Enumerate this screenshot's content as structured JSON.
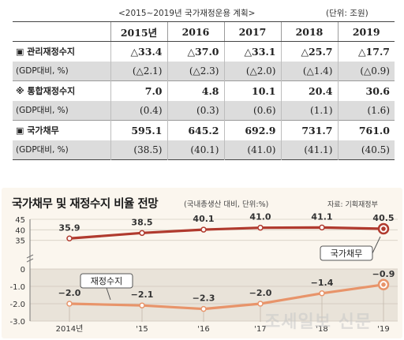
{
  "table": {
    "caption": "<2015~2019년 국가재정운용 계획>",
    "unit": "(단위: 조원)",
    "years": [
      "2015년",
      "2016",
      "2017",
      "2018",
      "2019"
    ],
    "rows": [
      {
        "type": "main",
        "label": "▣ 관리재정수지",
        "values": [
          "△33.4",
          "△37.0",
          "△33.1",
          "△25.7",
          "△17.7"
        ]
      },
      {
        "type": "sub",
        "label": "(GDP대비, %)",
        "values": [
          "(△2.1)",
          "(△2.3)",
          "(△2.0)",
          "(△1.4)",
          "(△0.9)"
        ]
      },
      {
        "type": "main",
        "label": "※ 통합재정수지",
        "values": [
          "7.0",
          "4.8",
          "10.1",
          "20.4",
          "30.6"
        ]
      },
      {
        "type": "sub",
        "label": "(GDP대비, %)",
        "values": [
          "(0.4)",
          "(0.3)",
          "(0.6)",
          "(1.1)",
          "(1.6)"
        ]
      },
      {
        "type": "main",
        "label": "▣ 국가채무",
        "values": [
          "595.1",
          "645.2",
          "692.9",
          "731.7",
          "761.0"
        ]
      },
      {
        "type": "sub",
        "label": "(GDP대비, %)",
        "values": [
          "(38.5)",
          "(40.1)",
          "(41.0)",
          "(41.1)",
          "(40.5)"
        ]
      }
    ]
  },
  "chart_data": {
    "type": "line",
    "title": "국가채무 및 재정수지 비율 전망",
    "subtitle": "(국내총생산 대비, 단위:%)",
    "source": "자료: 기획재정부",
    "categories": [
      "2014년",
      "'15",
      "'16",
      "'17",
      "'18",
      "'19"
    ],
    "upper_yticks": [
      45,
      40,
      35
    ],
    "lower_yticks": [
      0,
      -1.0,
      -2.0,
      -3.0
    ],
    "ylim_upper": [
      30,
      45
    ],
    "ylim_lower": [
      -3.0,
      0
    ],
    "axis_break": true,
    "series": [
      {
        "name": "국가채무",
        "values": [
          35.9,
          38.5,
          40.1,
          41.0,
          41.1,
          40.5
        ],
        "labels": [
          "35.9",
          "38.5",
          "40.1",
          "41.0",
          "41.1",
          "40.5"
        ],
        "color": "#b03a2e"
      },
      {
        "name": "재정수지",
        "values": [
          -2.0,
          -2.1,
          -2.3,
          -2.0,
          -1.4,
          -0.9
        ],
        "labels": [
          "−2.0",
          "−2.1",
          "−2.3",
          "−2.0",
          "−1.4",
          "−0.9"
        ],
        "color": "#e8946a"
      }
    ]
  },
  "watermark": "조세일보 신문",
  "colors": {
    "debt_line": "#b03a2e",
    "balance_line": "#e8946a",
    "panel_bg": "#fbf6ee",
    "lower_band": "#e9e3d9",
    "table_shade": "#dcdcdc"
  }
}
